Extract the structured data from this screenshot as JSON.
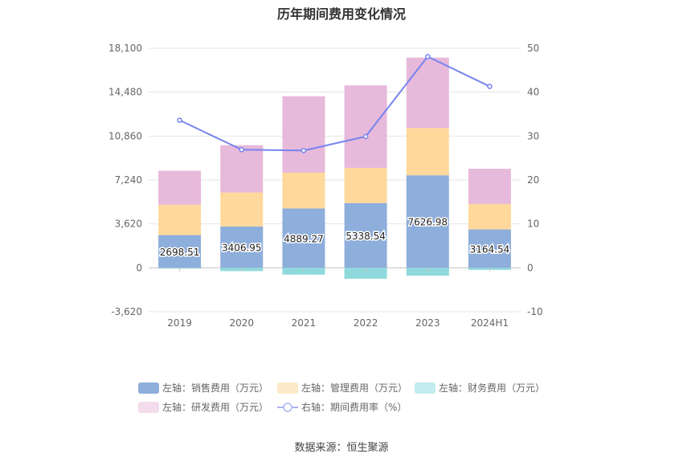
{
  "chart_data": {
    "type": "bar",
    "title": "历年期间费用变化情况",
    "categories": [
      "2019",
      "2020",
      "2021",
      "2022",
      "2023",
      "2024H1"
    ],
    "left_axis": {
      "ticks": [
        "18,100",
        "14,480",
        "10,860",
        "7,240",
        "3,620",
        "0",
        "-3,620"
      ],
      "min": -3620,
      "max": 18100
    },
    "right_axis": {
      "ticks": [
        "50",
        "40",
        "30",
        "20",
        "10",
        "0",
        "-10"
      ],
      "min": -10,
      "max": 50
    },
    "series": [
      {
        "name": "左轴：销售费用（万元）",
        "color": "#8eaedb",
        "stack": true,
        "values": [
          2698.51,
          3406.95,
          4889.27,
          5338.54,
          7626.98,
          3164.54
        ],
        "labels": [
          "2698.51",
          "3406.95",
          "4889.27",
          "5338.54",
          "7626.98",
          "3164.54"
        ]
      },
      {
        "name": "左轴：管理费用（万元）",
        "color": "#fed99b",
        "stack": true,
        "values": [
          2500,
          2800,
          2950,
          2900,
          3900,
          2100
        ]
      },
      {
        "name": "左轴：财务费用（万元）",
        "color": "#8fd9dc",
        "stack": true,
        "values": [
          -60,
          -270,
          -560,
          -900,
          -650,
          -170
        ]
      },
      {
        "name": "左轴：研发费用（万元）",
        "color": "#e7b9da",
        "stack": true,
        "values": [
          2800,
          3900,
          6300,
          6800,
          5800,
          2900
        ]
      },
      {
        "name": "右轴：期间费用率（%）",
        "color": "#7784ee",
        "type": "line",
        "axis": "right",
        "values": [
          33.6,
          26.9,
          26.7,
          29.9,
          48.1,
          41.3
        ]
      }
    ],
    "source": "数据来源：恒生聚源"
  }
}
